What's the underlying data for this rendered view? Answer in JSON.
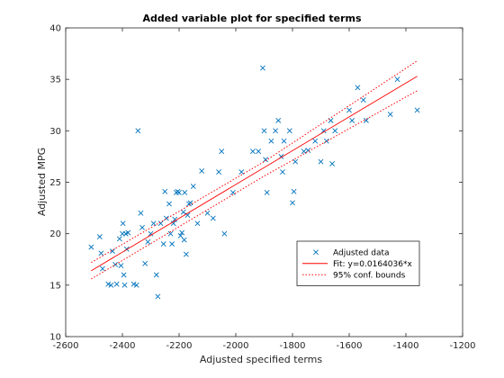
{
  "chart_data": {
    "type": "scatter",
    "title": "Added variable plot for specified terms",
    "xlabel": "Adjusted specified terms",
    "ylabel": "Adjusted MPG",
    "xlim": [
      -2600,
      -1200
    ],
    "ylim": [
      10,
      40
    ],
    "xticks": [
      -2600,
      -2400,
      -2200,
      -2000,
      -1800,
      -1600,
      -1400,
      -1200
    ],
    "yticks": [
      10,
      15,
      20,
      25,
      30,
      35,
      40
    ],
    "grid": false,
    "legend_position": "bottom-right",
    "series": [
      {
        "name": "Adjusted data",
        "kind": "markers",
        "marker": "x",
        "color": "#0072BD",
        "points": [
          [
            -2510,
            18.7
          ],
          [
            -2480,
            19.7
          ],
          [
            -2475,
            18.1
          ],
          [
            -2470,
            16.6
          ],
          [
            -2450,
            15.1
          ],
          [
            -2440,
            15.0
          ],
          [
            -2435,
            18.3
          ],
          [
            -2425,
            17.0
          ],
          [
            -2420,
            15.1
          ],
          [
            -2410,
            19.5
          ],
          [
            -2405,
            16.9
          ],
          [
            -2400,
            20.0
          ],
          [
            -2398,
            21.0
          ],
          [
            -2395,
            16.0
          ],
          [
            -2392,
            15.0
          ],
          [
            -2388,
            20.0
          ],
          [
            -2385,
            18.5
          ],
          [
            -2380,
            20.1
          ],
          [
            -2360,
            15.1
          ],
          [
            -2350,
            15.0
          ],
          [
            -2345,
            30.0
          ],
          [
            -2335,
            22.0
          ],
          [
            -2330,
            20.6
          ],
          [
            -2320,
            17.1
          ],
          [
            -2310,
            19.2
          ],
          [
            -2300,
            20.0
          ],
          [
            -2290,
            21.0
          ],
          [
            -2280,
            16.0
          ],
          [
            -2275,
            13.9
          ],
          [
            -2265,
            21.0
          ],
          [
            -2255,
            19.0
          ],
          [
            -2250,
            24.1
          ],
          [
            -2245,
            21.5
          ],
          [
            -2235,
            22.9
          ],
          [
            -2230,
            20.0
          ],
          [
            -2225,
            19.0
          ],
          [
            -2220,
            21.0
          ],
          [
            -2215,
            21.4
          ],
          [
            -2210,
            24.0
          ],
          [
            -2205,
            24.1
          ],
          [
            -2200,
            24.0
          ],
          [
            -2195,
            19.8
          ],
          [
            -2190,
            20.1
          ],
          [
            -2185,
            22.1
          ],
          [
            -2182,
            19.4
          ],
          [
            -2180,
            24.0
          ],
          [
            -2175,
            18.0
          ],
          [
            -2170,
            21.8
          ],
          [
            -2165,
            22.9
          ],
          [
            -2160,
            23.0
          ],
          [
            -2150,
            24.6
          ],
          [
            -2135,
            21.0
          ],
          [
            -2120,
            26.1
          ],
          [
            -2100,
            22.0
          ],
          [
            -2080,
            21.5
          ],
          [
            -2060,
            26.0
          ],
          [
            -2050,
            28.0
          ],
          [
            -2040,
            20.0
          ],
          [
            -2010,
            24.0
          ],
          [
            -1980,
            26.0
          ],
          [
            -1940,
            28.0
          ],
          [
            -1920,
            28.0
          ],
          [
            -1905,
            36.1
          ],
          [
            -1900,
            30.0
          ],
          [
            -1895,
            27.2
          ],
          [
            -1890,
            24.0
          ],
          [
            -1875,
            29.0
          ],
          [
            -1860,
            30.0
          ],
          [
            -1850,
            31.0
          ],
          [
            -1840,
            27.5
          ],
          [
            -1835,
            26.0
          ],
          [
            -1830,
            29.0
          ],
          [
            -1810,
            30.0
          ],
          [
            -1800,
            23.0
          ],
          [
            -1795,
            24.1
          ],
          [
            -1790,
            27.0
          ],
          [
            -1760,
            28.0
          ],
          [
            -1745,
            28.1
          ],
          [
            -1720,
            29.0
          ],
          [
            -1700,
            27.0
          ],
          [
            -1690,
            30.0
          ],
          [
            -1680,
            29.0
          ],
          [
            -1665,
            31.0
          ],
          [
            -1660,
            26.8
          ],
          [
            -1650,
            30.0
          ],
          [
            -1600,
            32.0
          ],
          [
            -1590,
            31.0
          ],
          [
            -1570,
            34.2
          ],
          [
            -1550,
            33.0
          ],
          [
            -1540,
            31.0
          ],
          [
            -1455,
            31.6
          ],
          [
            -1430,
            35.0
          ],
          [
            -1360,
            32.0
          ]
        ]
      },
      {
        "name": "Fit: y=0.0164036*x",
        "kind": "line",
        "style": "solid",
        "color": "#FF0000",
        "points": [
          [
            -2510,
            16.4
          ],
          [
            -1360,
            35.3
          ]
        ]
      },
      {
        "name": "95% conf. bounds",
        "kind": "line",
        "style": "dotted",
        "color": "#FF0000",
        "points": [
          [
            -2510,
            17.2
          ],
          [
            -1900,
            27.0
          ],
          [
            -1360,
            36.8
          ]
        ]
      },
      {
        "name": "",
        "kind": "line",
        "style": "dotted",
        "color": "#FF0000",
        "points": [
          [
            -2510,
            15.6
          ],
          [
            -1900,
            25.6
          ],
          [
            -1360,
            33.9
          ]
        ]
      }
    ]
  }
}
